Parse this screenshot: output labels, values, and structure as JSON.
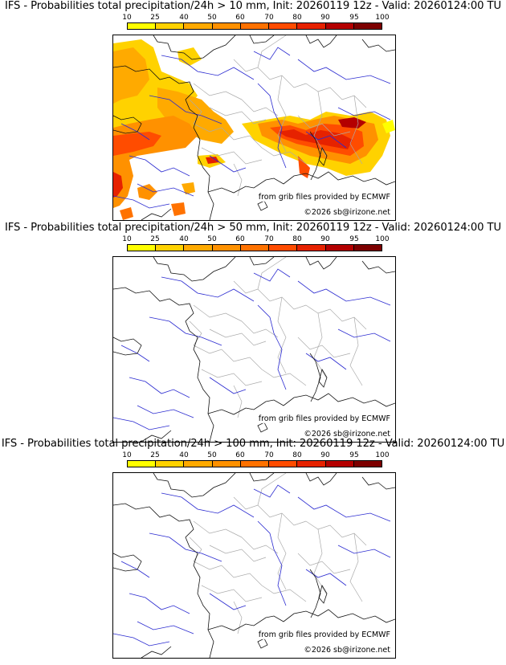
{
  "scale": {
    "labels": [
      "10",
      "25",
      "40",
      "50",
      "60",
      "70",
      "80",
      "90",
      "95",
      "100"
    ],
    "colors": [
      "#ffff00",
      "#ffd200",
      "#ffaa00",
      "#ff9100",
      "#ff7200",
      "#ff4c00",
      "#e62200",
      "#b40000",
      "#7d0000"
    ]
  },
  "panels": [
    {
      "title": "IFS - Probabilities total precipitation/24h > 10 mm, Init: 20260119 12z - Valid: 20260124:00 TU",
      "threshold": "10 mm"
    },
    {
      "title": "IFS - Probabilities total precipitation/24h > 50 mm, Init: 20260119 12z - Valid: 20260124:00 TU",
      "threshold": "50 mm"
    },
    {
      "title": "IFS - Probabilities total precipitation/24h > 100 mm, Init: 20260119 12z - Valid: 20260124:00 TU",
      "threshold": "100 mm"
    }
  ],
  "credits": {
    "source": "from grib files provided by ECMWF",
    "copyright": "©2026 sb@irizone.net"
  }
}
